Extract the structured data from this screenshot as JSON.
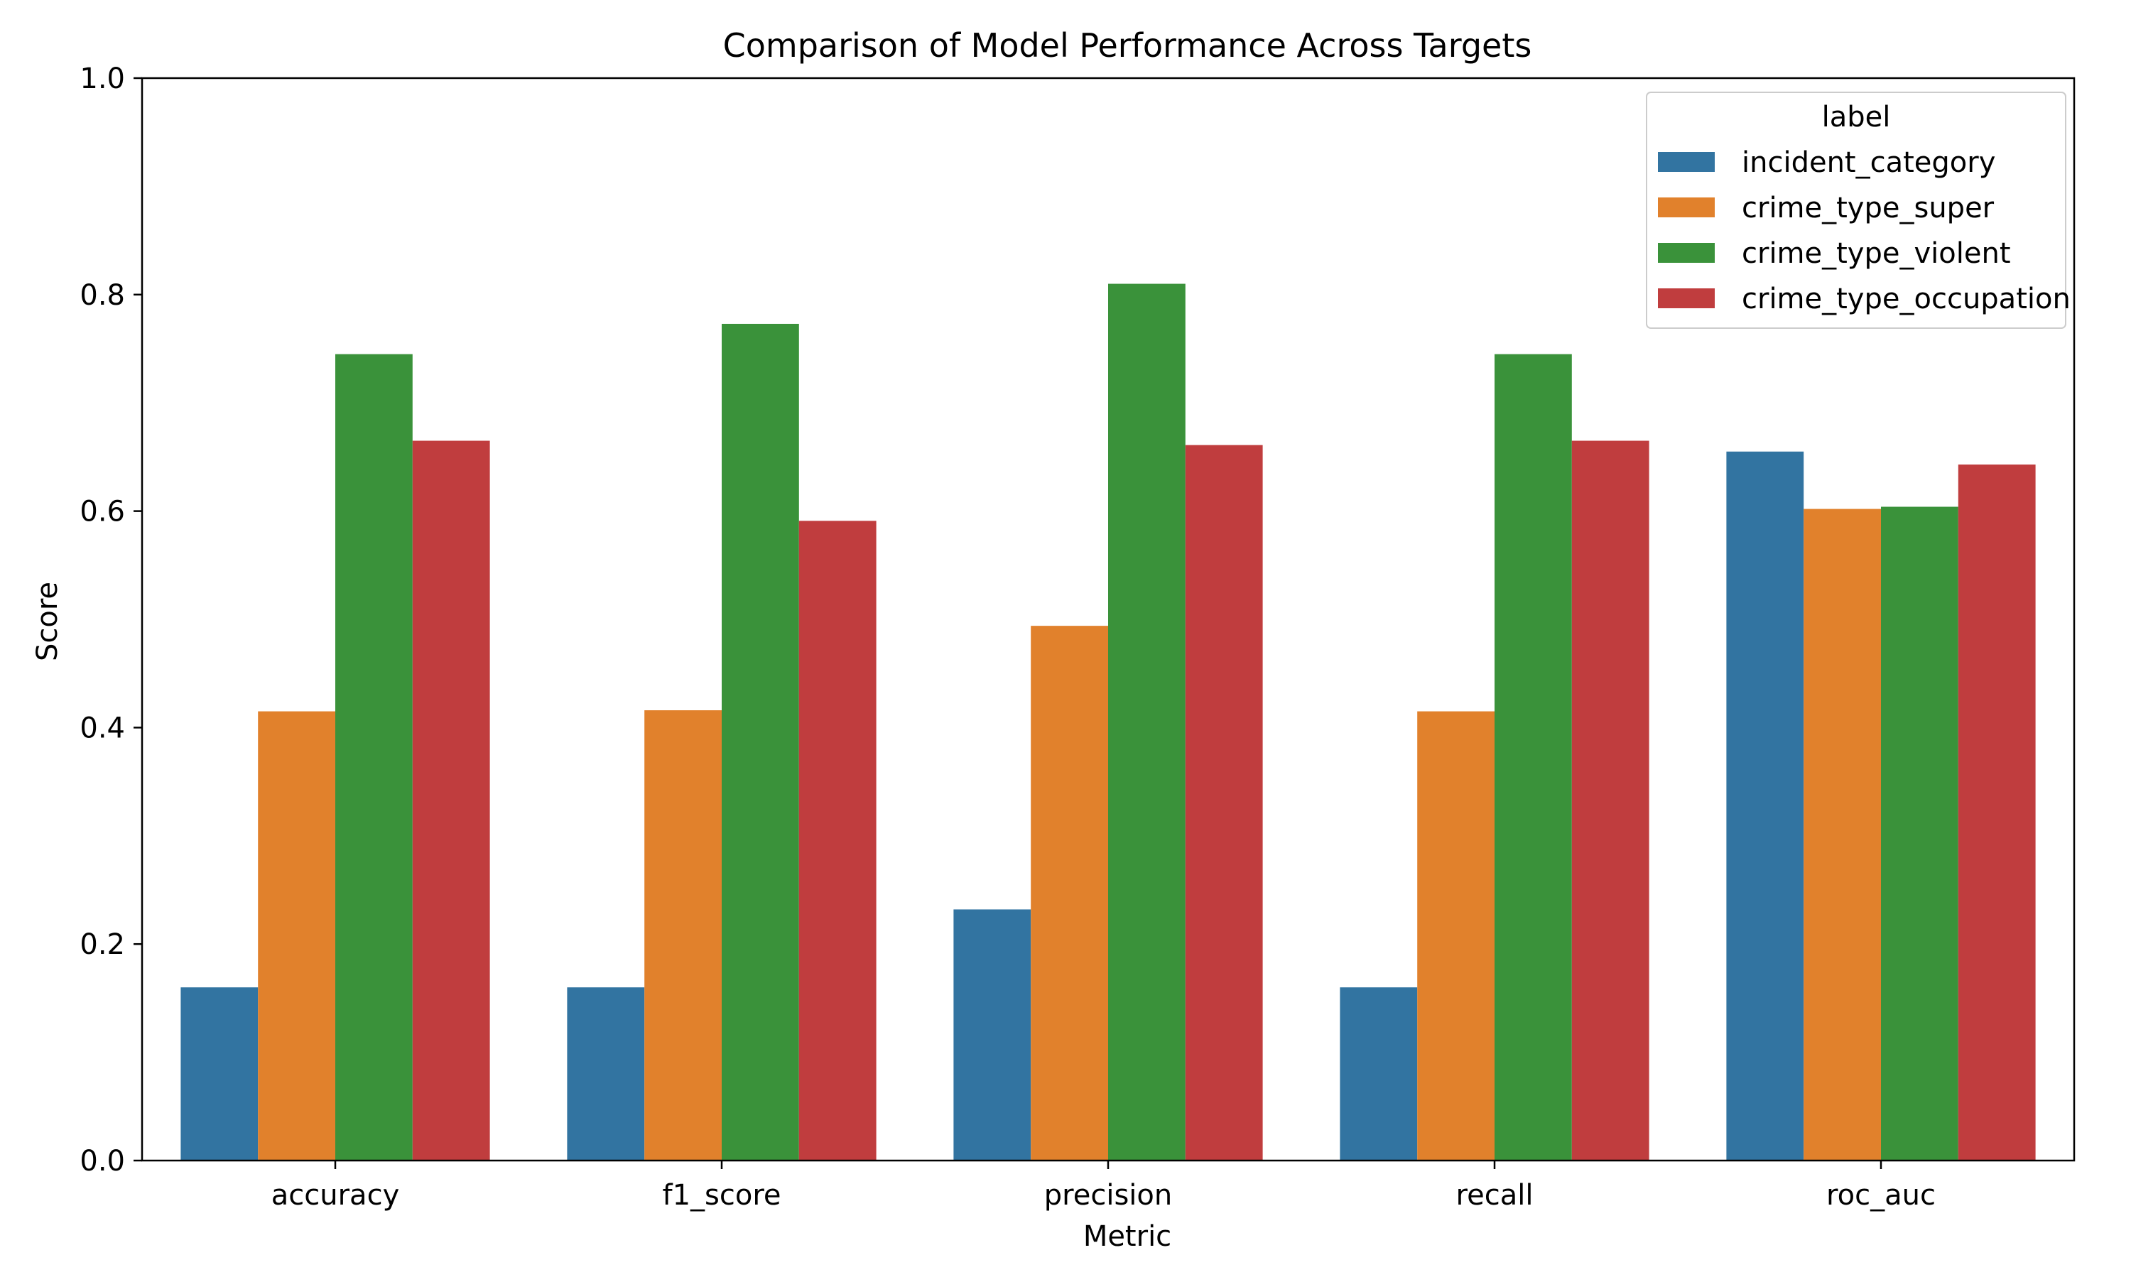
{
  "chart_data": {
    "type": "bar",
    "title": "Comparison of Model Performance Across Targets",
    "xlabel": "Metric",
    "ylabel": "Score",
    "ylim": [
      0,
      1.0
    ],
    "yticks": [
      "0.0",
      "0.2",
      "0.4",
      "0.6",
      "0.8",
      "1.0"
    ],
    "grid": false,
    "categories": [
      "accuracy",
      "f1_score",
      "precision",
      "recall",
      "roc_auc"
    ],
    "legend": {
      "title": "label",
      "placement": "top-right"
    },
    "series": [
      {
        "name": "incident_category",
        "color": "#3274a1",
        "values": [
          0.16,
          0.16,
          0.232,
          0.16,
          0.655
        ]
      },
      {
        "name": "crime_type_super",
        "color": "#e1812c",
        "values": [
          0.415,
          0.416,
          0.494,
          0.415,
          0.602
        ]
      },
      {
        "name": "crime_type_violent",
        "color": "#3a923a",
        "values": [
          0.745,
          0.773,
          0.81,
          0.745,
          0.604
        ]
      },
      {
        "name": "crime_type_occupation",
        "color": "#c03d3e",
        "values": [
          0.665,
          0.591,
          0.661,
          0.665,
          0.643
        ]
      }
    ]
  }
}
